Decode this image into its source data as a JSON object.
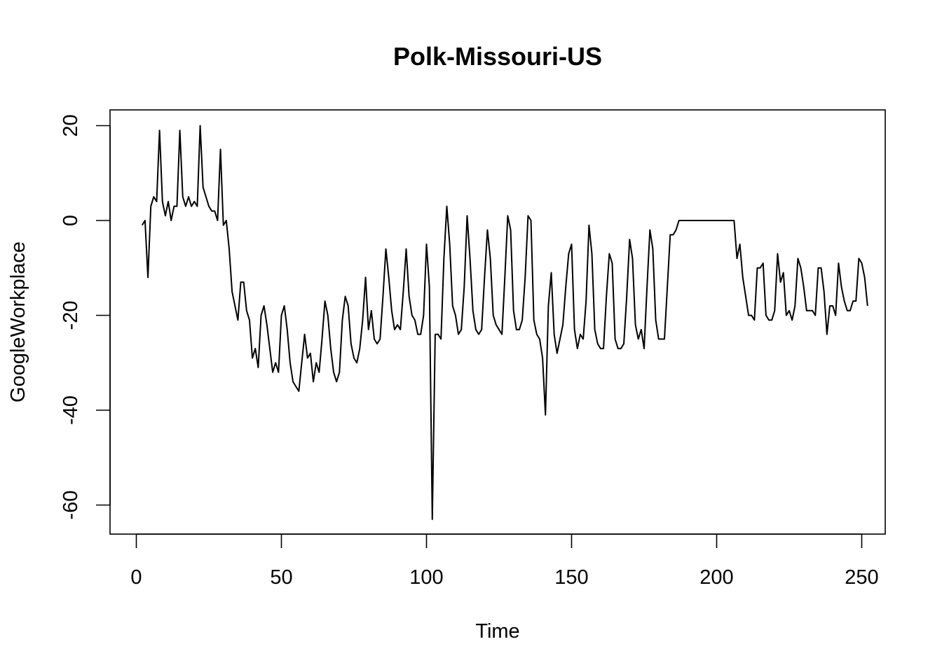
{
  "chart_data": {
    "type": "line",
    "title": "Polk-Missouri-US",
    "xlabel": "Time",
    "ylabel": "GoogleWorkplace",
    "xlim": [
      0,
      250
    ],
    "ylim": [
      -60,
      20
    ],
    "xticks": [
      0,
      50,
      100,
      150,
      200,
      250
    ],
    "yticks": [
      -60,
      -40,
      -20,
      0,
      20
    ],
    "grid": false,
    "line_color": "#000000",
    "series": [
      {
        "x_start": 2,
        "values": [
          -1,
          0,
          -12,
          3,
          5,
          4,
          19,
          4,
          1,
          4,
          0,
          3,
          3,
          19,
          5,
          3,
          5,
          3,
          4,
          3,
          20,
          7,
          5,
          3,
          2,
          2,
          0,
          15,
          -1,
          0,
          -6,
          -15,
          -18,
          -21,
          -13,
          -13,
          -19,
          -21,
          -29,
          -27,
          -31,
          -20,
          -18,
          -22,
          -27,
          -32,
          -30,
          -32,
          -20,
          -18,
          -23,
          -30,
          -34,
          -35,
          -36,
          -30,
          -24,
          -29,
          -28,
          -34,
          -30,
          -32,
          -25,
          -17,
          -20,
          -27,
          -32,
          -34,
          -32,
          -21,
          -16,
          -18,
          -26,
          -29,
          -30,
          -27,
          -21,
          -12,
          -23,
          -19,
          -25,
          -26,
          -25,
          -16,
          -6,
          -12,
          -19,
          -23,
          -22,
          -23,
          -15,
          -6,
          -16,
          -20,
          -21,
          -24,
          -24,
          -20,
          -5,
          -14,
          -63,
          -24,
          -24,
          -25,
          -8,
          3,
          -5,
          -18,
          -20,
          -24,
          -23,
          -14,
          1,
          -8,
          -19,
          -23,
          -24,
          -23,
          -12,
          -2,
          -8,
          -20,
          -22,
          -23,
          -24,
          -12,
          1,
          -2,
          -19,
          -23,
          -23,
          -21,
          -12,
          1,
          0,
          -21,
          -24,
          -25,
          -29,
          -41,
          -18,
          -11,
          -24,
          -28,
          -25,
          -22,
          -14,
          -7,
          -5,
          -23,
          -27,
          -24,
          -25,
          -17,
          -1,
          -7,
          -23,
          -26,
          -27,
          -27,
          -16,
          -7,
          -9,
          -25,
          -27,
          -27,
          -26,
          -16,
          -4,
          -8,
          -22,
          -25,
          -23,
          -27,
          -14,
          -2,
          -6,
          -21,
          -25,
          -25,
          -25,
          -14,
          -3,
          -3,
          -2,
          0,
          0,
          0,
          0,
          0,
          0,
          0,
          0,
          0,
          0,
          0,
          0,
          0,
          0,
          0,
          0,
          0,
          0,
          0,
          0,
          -8,
          -5,
          -12,
          -16,
          -20,
          -20,
          -21,
          -10,
          -10,
          -9,
          -20,
          -21,
          -21,
          -19,
          -7,
          -13,
          -11,
          -20,
          -19,
          -21,
          -18,
          -8,
          -10,
          -14,
          -19,
          -19,
          -19,
          -20,
          -10,
          -10,
          -15,
          -24,
          -18,
          -18,
          -20,
          -9,
          -14,
          -17,
          -19,
          -19,
          -17,
          -17,
          -8,
          -9,
          -12,
          -18
        ]
      }
    ]
  }
}
